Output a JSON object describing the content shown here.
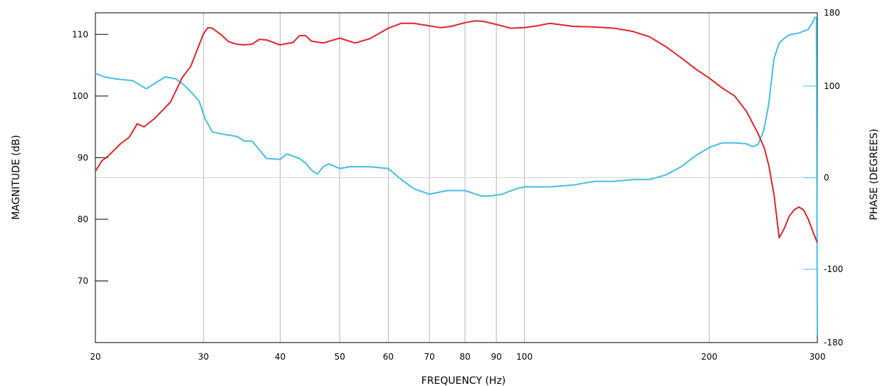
{
  "chart_data": {
    "type": "line",
    "title": "",
    "xlabel": "FREQUENCY (Hz)",
    "ylabel": "MAGNITUDE (dB)",
    "y2label": "PHASE (DEGREES)",
    "x_scale": "log",
    "xlim": [
      20,
      300
    ],
    "ylim": [
      60,
      113.5
    ],
    "y2lim": [
      -180,
      180
    ],
    "x_ticks": [
      20,
      30,
      40,
      50,
      60,
      70,
      80,
      90,
      100,
      200,
      300
    ],
    "x_tick_labels": [
      "20",
      "30",
      "40",
      "50",
      "60",
      "70",
      "80",
      "90",
      "100",
      "200",
      "300"
    ],
    "y_ticks": [
      70,
      80,
      90,
      100,
      110
    ],
    "y_tick_labels": [
      "70",
      "80",
      "90",
      "100",
      "110"
    ],
    "y2_ticks": [
      -180,
      -100,
      0,
      100,
      180
    ],
    "y2_tick_labels": [
      "-180",
      "-100",
      "0",
      "100",
      "180"
    ],
    "grid": {
      "vertical": true,
      "horizontal_zero_phase": true
    },
    "colors": {
      "magnitude": "#e0242c",
      "phase": "#45bde6",
      "grid": "#b4b4b4",
      "axis": "#000000"
    },
    "series": [
      {
        "axis": "left",
        "x": [
          20,
          20.5,
          21,
          22,
          22.7,
          23.4,
          24,
          25,
          25.5,
          26.5,
          27.7,
          28.6,
          30,
          30.5,
          31,
          32,
          33,
          34,
          35,
          36,
          37,
          38,
          40,
          42,
          43,
          44,
          45,
          47,
          50,
          53,
          56,
          60,
          63,
          66,
          70,
          73,
          76,
          80,
          83,
          86,
          90,
          95,
          100,
          105,
          110,
          120,
          130,
          140,
          150,
          160,
          170,
          180,
          190,
          200,
          210,
          220,
          230,
          240,
          246,
          250,
          255,
          260,
          265,
          270,
          275,
          280,
          285,
          290,
          295,
          300
        ],
        "values": [
          87.8,
          89.5,
          90.3,
          92.3,
          93.3,
          95.5,
          95.0,
          96.4,
          97.3,
          99,
          103,
          104.8,
          110.1,
          111.1,
          111.0,
          110,
          108.8,
          108.4,
          108.3,
          108.4,
          109.2,
          109.1,
          108.3,
          108.7,
          109.8,
          109.8,
          108.9,
          108.6,
          109.4,
          108.6,
          109.3,
          111.0,
          111.8,
          111.8,
          111.4,
          111.1,
          111.3,
          111.9,
          112.2,
          112.1,
          111.6,
          111.0,
          111.1,
          111.4,
          111.8,
          111.3,
          111.2,
          111.0,
          110.5,
          109.6,
          108.0,
          106.2,
          104.4,
          102.9,
          101.3,
          100.0,
          97.5,
          94.0,
          91.5,
          88.8,
          84.0,
          77.0,
          78.5,
          80.5,
          81.5,
          82.0,
          81.5,
          80.0,
          78.0,
          76.2
        ]
      },
      {
        "axis": "right",
        "x": [
          20,
          20.7,
          21.5,
          23,
          24.2,
          25,
          26,
          27,
          27.8,
          28.5,
          29.5,
          30.2,
          31,
          32,
          34,
          35,
          36,
          38,
          40,
          41,
          43,
          44,
          45,
          46,
          47,
          48,
          50,
          52,
          56,
          60,
          63,
          66,
          70,
          75,
          80,
          85,
          88,
          92,
          97,
          100,
          110,
          120,
          130,
          140,
          150,
          160,
          170,
          180,
          190,
          200,
          210,
          220,
          230,
          235,
          240,
          245,
          250,
          255,
          260,
          265,
          270,
          280,
          285,
          290,
          295,
          297,
          299,
          300
        ],
        "values": [
          114,
          110,
          108,
          106,
          97,
          103,
          110,
          108,
          102,
          95,
          84,
          64,
          50,
          48,
          45,
          40,
          40,
          21,
          20,
          26,
          21,
          16,
          8,
          4,
          12,
          15,
          10,
          12,
          12,
          10,
          -2,
          -12,
          -18,
          -14,
          -14,
          -20,
          -20,
          -18,
          -12,
          -10,
          -10,
          -8,
          -4,
          -4,
          -2,
          -2,
          3,
          12,
          24,
          33,
          38,
          38,
          37,
          34,
          36,
          50,
          80,
          130,
          147,
          152,
          156,
          158,
          160,
          162,
          170,
          175,
          175,
          -172
        ]
      }
    ]
  }
}
